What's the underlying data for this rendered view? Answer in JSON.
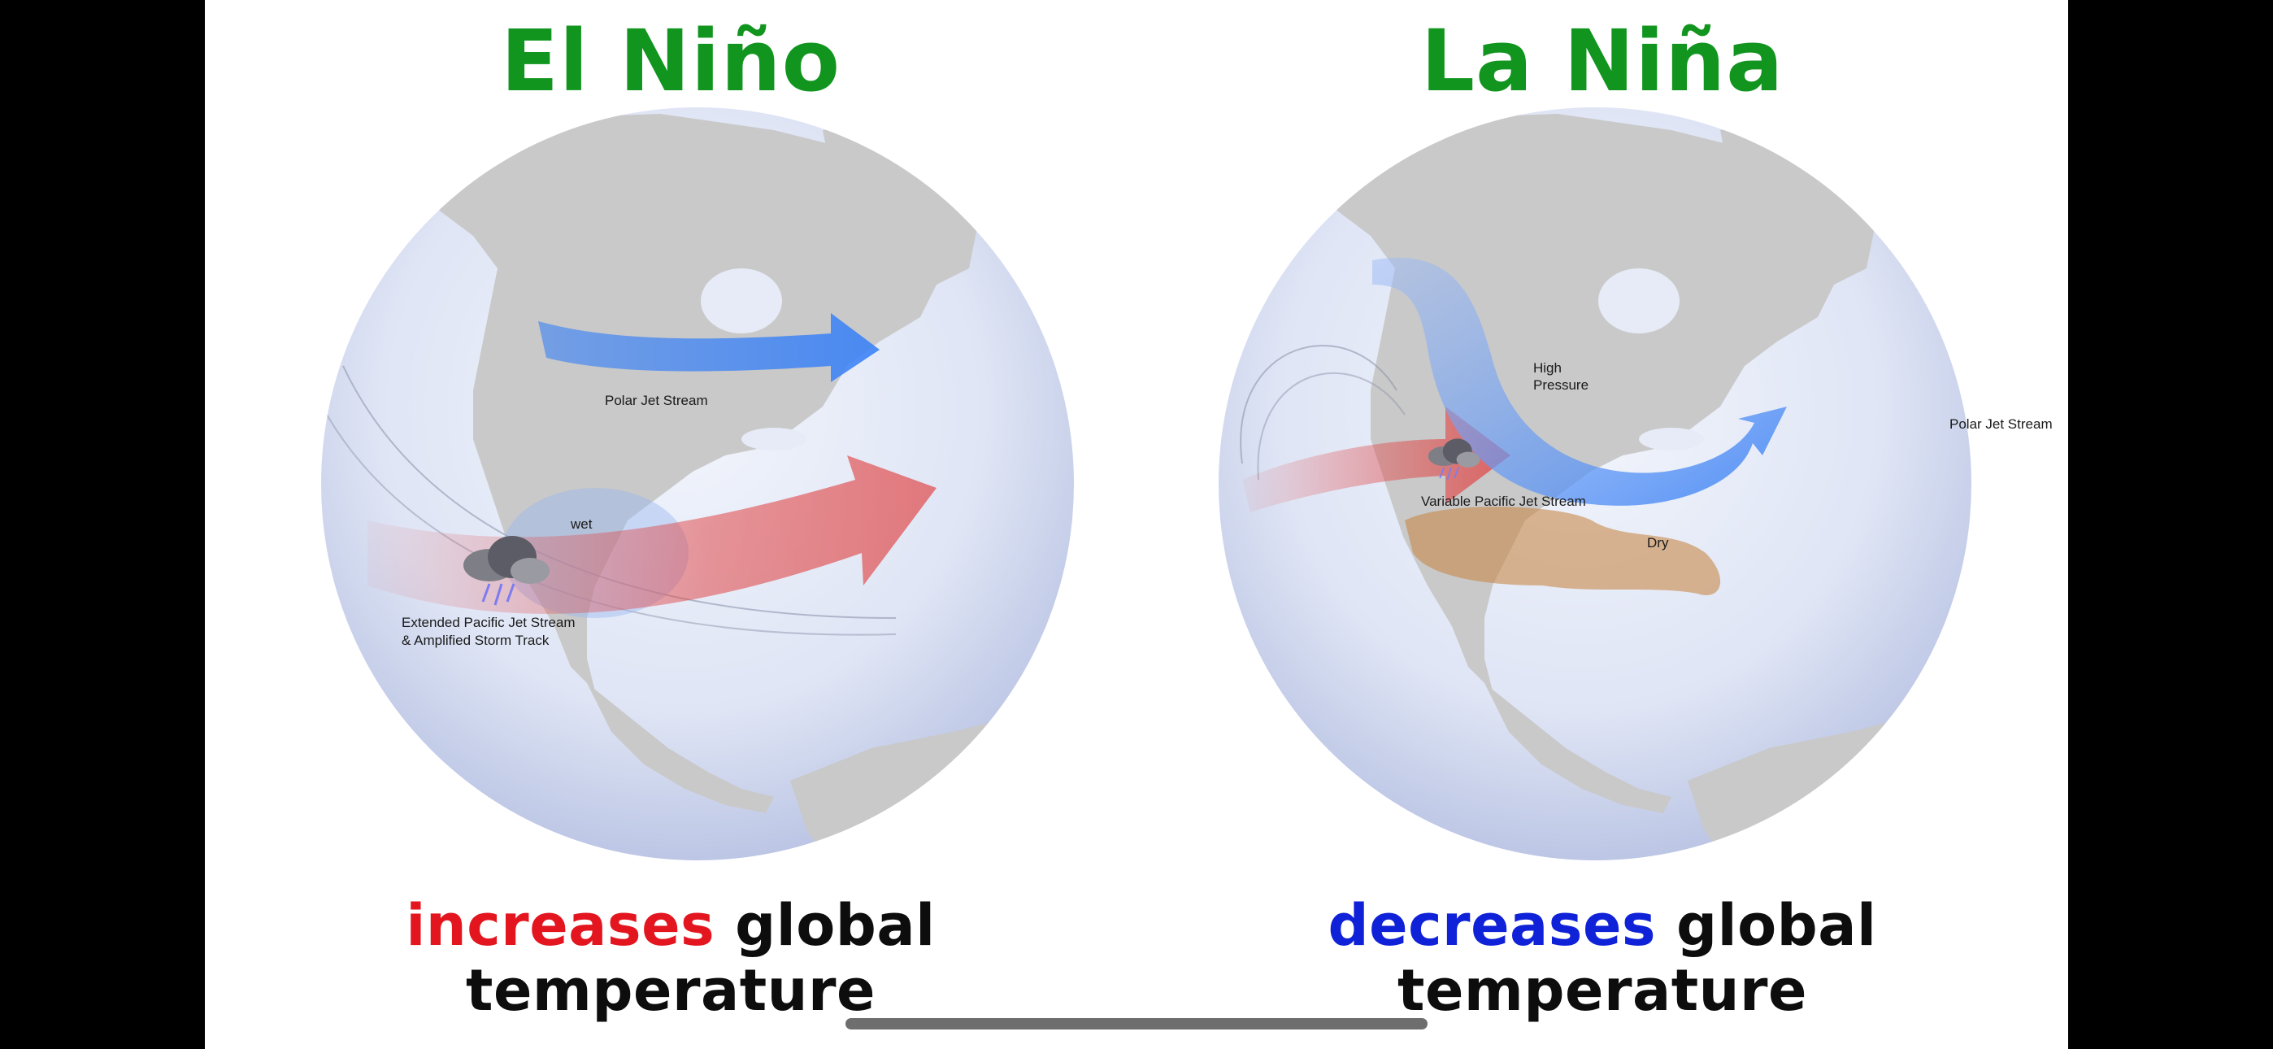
{
  "colors": {
    "title_green": "#11951f",
    "increase_red": "#e3151f",
    "decrease_blue": "#1022d8",
    "caption_black": "#0d0d0d",
    "land_gray": "#c9c9c9",
    "jet_blue": "#3b82f6",
    "jet_red": "#e04848",
    "dry_orange": "#c8894a"
  },
  "panels": [
    {
      "title": "El Niño",
      "caption": {
        "highlight": "increases",
        "rest_line1": " global",
        "line2": "temperature"
      },
      "map": {
        "labels": {
          "polar": "Polar Jet Stream",
          "wet": "wet",
          "pacific_1": "Extended Pacific Jet Stream",
          "pacific_2": "& Amplified Storm Track"
        },
        "icons": [
          "storm-cloud-icon"
        ]
      }
    },
    {
      "title": "La Niña",
      "caption": {
        "highlight": "decreases",
        "rest_line1": " global",
        "line2": "temperature"
      },
      "map": {
        "labels": {
          "high_1": "High",
          "high_2": "Pressure",
          "polar": "Polar Jet Stream",
          "pacific": "Variable Pacific Jet Stream",
          "dry": "Dry"
        },
        "icons": [
          "storm-cloud-icon"
        ]
      }
    }
  ]
}
